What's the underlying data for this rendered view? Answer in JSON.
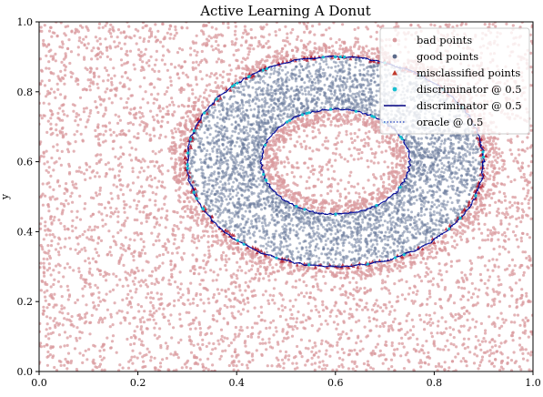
{
  "chart_data": {
    "type": "scatter",
    "title": "Active Learning A Donut",
    "xlabel": "",
    "ylabel": "y",
    "xlim": [
      0.0,
      1.0
    ],
    "ylim": [
      0.0,
      1.0
    ],
    "xticks": [
      "0.0",
      "0.2",
      "0.4",
      "0.6",
      "0.8",
      "1.0"
    ],
    "yticks": [
      "0.0",
      "0.2",
      "0.4",
      "0.6",
      "0.8",
      "1.0"
    ],
    "grid": false,
    "legend_position": "top-right",
    "donut": {
      "center": [
        0.6,
        0.6
      ],
      "inner_radius_x": 0.15,
      "inner_radius_y": 0.15,
      "outer_radius_x": 0.3,
      "outer_radius_y": 0.3
    },
    "legend": [
      {
        "label": "bad points",
        "marker": "dot",
        "color": "#d99a9e"
      },
      {
        "label": "good points",
        "marker": "dot",
        "color": "#5b6a8a"
      },
      {
        "label": "misclassified points",
        "marker": "triangle",
        "color": "#c0392b"
      },
      {
        "label": "discriminator @ 0.5",
        "marker": "dot",
        "color": "#17becf"
      },
      {
        "label": "discriminator @ 0.5",
        "marker": "line",
        "color": "#000080"
      },
      {
        "label": "oracle @ 0.5",
        "marker": "dotted-line",
        "color": "#1f3fbf"
      }
    ],
    "colors": {
      "bad": "#d99a9e",
      "good": "#6b7b9c",
      "misclassified": "#b01c2e",
      "discriminator_points": "#17becf",
      "discriminator_line": "#000080",
      "oracle_line": "#2233cc"
    }
  }
}
